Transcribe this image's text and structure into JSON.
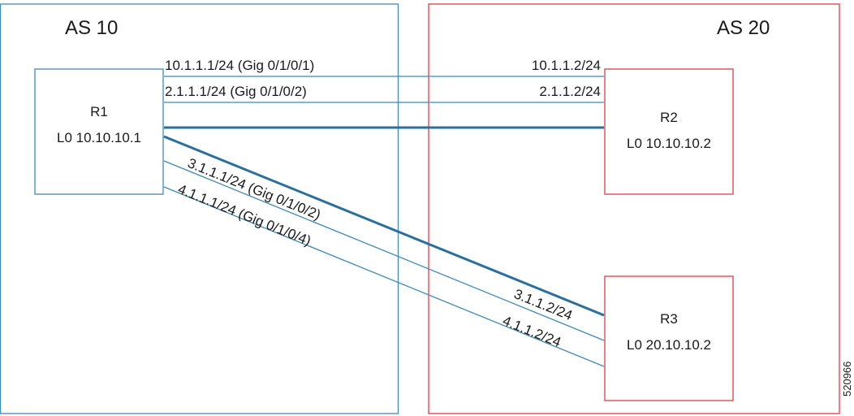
{
  "colors": {
    "as10_border": "#3f8ab6",
    "as20_border": "#e63946",
    "link": "#3f8ab6",
    "link_thick": "#2a6f9e",
    "text": "#1a1a1a"
  },
  "autonomous_systems": [
    {
      "id": "as10",
      "label": "AS 10"
    },
    {
      "id": "as20",
      "label": "AS 20"
    }
  ],
  "routers": [
    {
      "id": "r1",
      "name": "R1",
      "loopback": "L0 10.10.10.1"
    },
    {
      "id": "r2",
      "name": "R2",
      "loopback": "L0 10.10.10.2"
    },
    {
      "id": "r3",
      "name": "R3",
      "loopback": "L0 20.10.10.2"
    }
  ],
  "links": [
    {
      "id": "link-1",
      "from": "r1",
      "to": "r2",
      "local": "10.1.1.1/24 (Gig 0/1/0/1)",
      "remote": "10.1.1.2/24"
    },
    {
      "id": "link-2",
      "from": "r1",
      "to": "r2",
      "local": "2.1.1.1/24 (Gig 0/1/0/2)",
      "remote": "2.1.1.2/24"
    },
    {
      "id": "link-3",
      "from": "r1",
      "to": "r2",
      "local": "",
      "remote": ""
    },
    {
      "id": "link-4",
      "from": "r1",
      "to": "r3",
      "local": "3.1.1.1/24 (Gig 0/1/0/2)",
      "remote": "3.1.1.2/24"
    },
    {
      "id": "link-5",
      "from": "r1",
      "to": "r3",
      "local": "4.1.1.1/24 (Gig 0/1/0/4)",
      "remote": "4.1.1.2/24"
    }
  ],
  "figure_id": "520966"
}
